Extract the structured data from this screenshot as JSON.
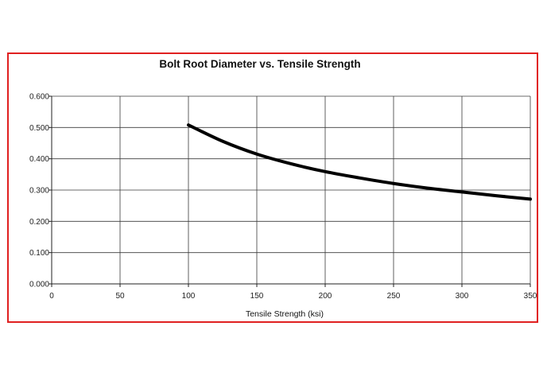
{
  "chart_data": {
    "type": "line",
    "title": "Bolt Root Diameter vs. Tensile Strength",
    "xlabel": "Tensile Strength (ksi)",
    "ylabel": "",
    "xlim": [
      0,
      350
    ],
    "ylim": [
      0,
      0.6
    ],
    "x_ticks": [
      "0",
      "50",
      "100",
      "150",
      "200",
      "250",
      "300",
      "350"
    ],
    "y_ticks": [
      "0.000",
      "0.100",
      "0.200",
      "0.300",
      "0.400",
      "0.500",
      "0.600"
    ],
    "grid": true,
    "series": [
      {
        "color": "#000000",
        "points": [
          [
            100,
            0.508
          ],
          [
            125,
            0.456
          ],
          [
            150,
            0.415
          ],
          [
            175,
            0.384
          ],
          [
            200,
            0.359
          ],
          [
            225,
            0.339
          ],
          [
            250,
            0.321
          ],
          [
            275,
            0.306
          ],
          [
            300,
            0.294
          ],
          [
            325,
            0.282
          ],
          [
            350,
            0.271
          ]
        ]
      }
    ]
  },
  "colors": {
    "frame": "#e02020",
    "line": "#000000",
    "grid": "#3a3a3a"
  }
}
